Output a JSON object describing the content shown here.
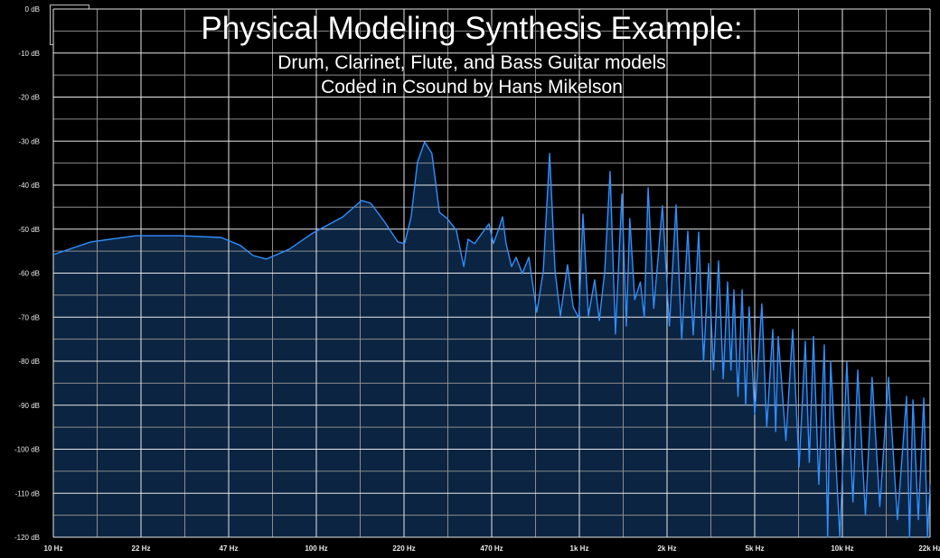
{
  "chart_data": {
    "type": "area",
    "title": "Physical Modeling Synthesis Example:",
    "subtitle_lines": [
      "Drum, Clarinet, Flute, and Bass Guitar models",
      "Coded in Csound by Hans Mikelson"
    ],
    "x_scale": "log",
    "xlim": [
      10,
      22000
    ],
    "ylim": [
      -120,
      0
    ],
    "grid": true,
    "x_ticks": [
      {
        "value": 10,
        "label": "10 Hz"
      },
      {
        "value": 22,
        "label": "22 Hz"
      },
      {
        "value": 47,
        "label": "47 Hz"
      },
      {
        "value": 100,
        "label": "100 Hz"
      },
      {
        "value": 220,
        "label": "220 Hz"
      },
      {
        "value": 470,
        "label": "470 Hz"
      },
      {
        "value": 1000,
        "label": "1k Hz"
      },
      {
        "value": 2000,
        "label": "2k Hz"
      },
      {
        "value": 5000,
        "label": "5k Hz"
      },
      {
        "value": 10000,
        "label": "10k Hz"
      },
      {
        "value": 22000,
        "label": "22k Hz"
      }
    ],
    "y_ticks": [
      {
        "value": 0,
        "label": "0 dB"
      },
      {
        "value": -10,
        "label": "-10 dB"
      },
      {
        "value": -20,
        "label": "-20 dB"
      },
      {
        "value": -30,
        "label": "-30 dB"
      },
      {
        "value": -40,
        "label": "-40 dB"
      },
      {
        "value": -50,
        "label": "-50 dB"
      },
      {
        "value": -60,
        "label": "-60 dB"
      },
      {
        "value": -70,
        "label": "-70 dB"
      },
      {
        "value": -80,
        "label": "-80 dB"
      },
      {
        "value": -90,
        "label": "-90 dB"
      },
      {
        "value": -100,
        "label": "-100 dB"
      },
      {
        "value": -110,
        "label": "-110 dB"
      },
      {
        "value": -120,
        "label": "-120 dB"
      }
    ],
    "colors": {
      "line": "#2f8fff",
      "fill": "#0b2442",
      "grid_major": "#e6e6e6",
      "grid_minor": "#8c8c8c",
      "background": "#000000"
    },
    "series": [
      {
        "points": [
          [
            10,
            -55.8
          ],
          [
            14,
            -52.9
          ],
          [
            21,
            -51.5
          ],
          [
            31,
            -51.5
          ],
          [
            44,
            -51.9
          ],
          [
            52,
            -53.7
          ],
          [
            58,
            -56
          ],
          [
            65,
            -56.8
          ],
          [
            79,
            -54.6
          ],
          [
            97,
            -50.9
          ],
          [
            127,
            -47.2
          ],
          [
            150,
            -43.5
          ],
          [
            163,
            -44.1
          ],
          [
            184,
            -48.2
          ],
          [
            208,
            -52.9
          ],
          [
            221,
            -53.3
          ],
          [
            234,
            -47.2
          ],
          [
            247,
            -34.9
          ],
          [
            263,
            -30.2
          ],
          [
            280,
            -32.8
          ],
          [
            299,
            -46.2
          ],
          [
            320,
            -47.6
          ],
          [
            346,
            -50.3
          ],
          [
            369,
            -58.5
          ],
          [
            383,
            -52.3
          ],
          [
            405,
            -53.3
          ],
          [
            428,
            -51.3
          ],
          [
            459,
            -48.8
          ],
          [
            477,
            -53.3
          ],
          [
            504,
            -49.2
          ],
          [
            516,
            -47.2
          ],
          [
            532,
            -53.3
          ],
          [
            558,
            -58.5
          ],
          [
            580,
            -56.4
          ],
          [
            612,
            -60.1
          ],
          [
            647,
            -56.4
          ],
          [
            693,
            -68.9
          ],
          [
            733,
            -59.5
          ],
          [
            774,
            -32.8
          ],
          [
            811,
            -59.5
          ],
          [
            849,
            -69.7
          ],
          [
            903,
            -58.1
          ],
          [
            948,
            -67.7
          ],
          [
            995,
            -70.2
          ],
          [
            1029,
            -46.6
          ],
          [
            1074,
            -69.7
          ],
          [
            1129,
            -61.5
          ],
          [
            1170,
            -70.8
          ],
          [
            1222,
            -59.5
          ],
          [
            1275,
            -36.9
          ],
          [
            1330,
            -73.8
          ],
          [
            1400,
            -42
          ],
          [
            1450,
            -72
          ],
          [
            1490,
            -47.6
          ],
          [
            1550,
            -66
          ],
          [
            1620,
            -62
          ],
          [
            1670,
            -70
          ],
          [
            1722,
            -40.6
          ],
          [
            1800,
            -68
          ],
          [
            1929,
            -44.7
          ],
          [
            2050,
            -72
          ],
          [
            2198,
            -44.5
          ],
          [
            2330,
            -75
          ],
          [
            2486,
            -50.5
          ],
          [
            2630,
            -74
          ],
          [
            2784,
            -50.7
          ],
          [
            2930,
            -80
          ],
          [
            3090,
            -57.8
          ],
          [
            3250,
            -82
          ],
          [
            3426,
            -57.2
          ],
          [
            3600,
            -84
          ],
          [
            3766,
            -62
          ],
          [
            3900,
            -82
          ],
          [
            4024,
            -63.8
          ],
          [
            4200,
            -88
          ],
          [
            4384,
            -63.8
          ],
          [
            4550,
            -90
          ],
          [
            4720,
            -67.7
          ],
          [
            5000,
            -92
          ],
          [
            5290,
            -67
          ],
          [
            5500,
            -95
          ],
          [
            5770,
            -72.8
          ],
          [
            5900,
            -96
          ],
          [
            6020,
            -74.4
          ],
          [
            6400,
            -98
          ],
          [
            6750,
            -72.8
          ],
          [
            7100,
            -104
          ],
          [
            7460,
            -75.5
          ],
          [
            7700,
            -103
          ],
          [
            7955,
            -74.4
          ],
          [
            8300,
            -108
          ],
          [
            8670,
            -76.3
          ],
          [
            8900,
            -120
          ],
          [
            9110,
            -80
          ],
          [
            9800,
            -120
          ],
          [
            10410,
            -80.2
          ],
          [
            11000,
            -112
          ],
          [
            11480,
            -82
          ],
          [
            12300,
            -115
          ],
          [
            13070,
            -83.7
          ],
          [
            14000,
            -113
          ],
          [
            15140,
            -83.7
          ],
          [
            16400,
            -116
          ],
          [
            17810,
            -88
          ],
          [
            18300,
            -120
          ],
          [
            18860,
            -88.8
          ],
          [
            19800,
            -116
          ],
          [
            20800,
            -88.4
          ],
          [
            21500,
            -120
          ],
          [
            22000,
            -108
          ]
        ]
      }
    ]
  }
}
